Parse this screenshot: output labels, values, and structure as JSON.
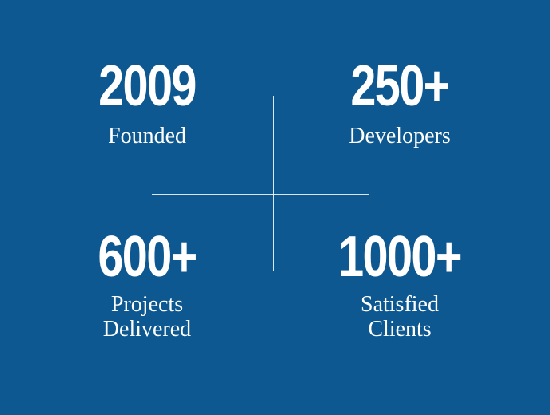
{
  "stats": [
    {
      "value": "2009",
      "label": "Founded"
    },
    {
      "value": "250+",
      "label": "Developers"
    },
    {
      "value": "600+",
      "label": "Projects\nDelivered"
    },
    {
      "value": "1000+",
      "label": "Satisfied\nClients"
    }
  ],
  "colors": {
    "background": "#0d5891",
    "text": "#ffffff",
    "divider": "#ffffff"
  }
}
